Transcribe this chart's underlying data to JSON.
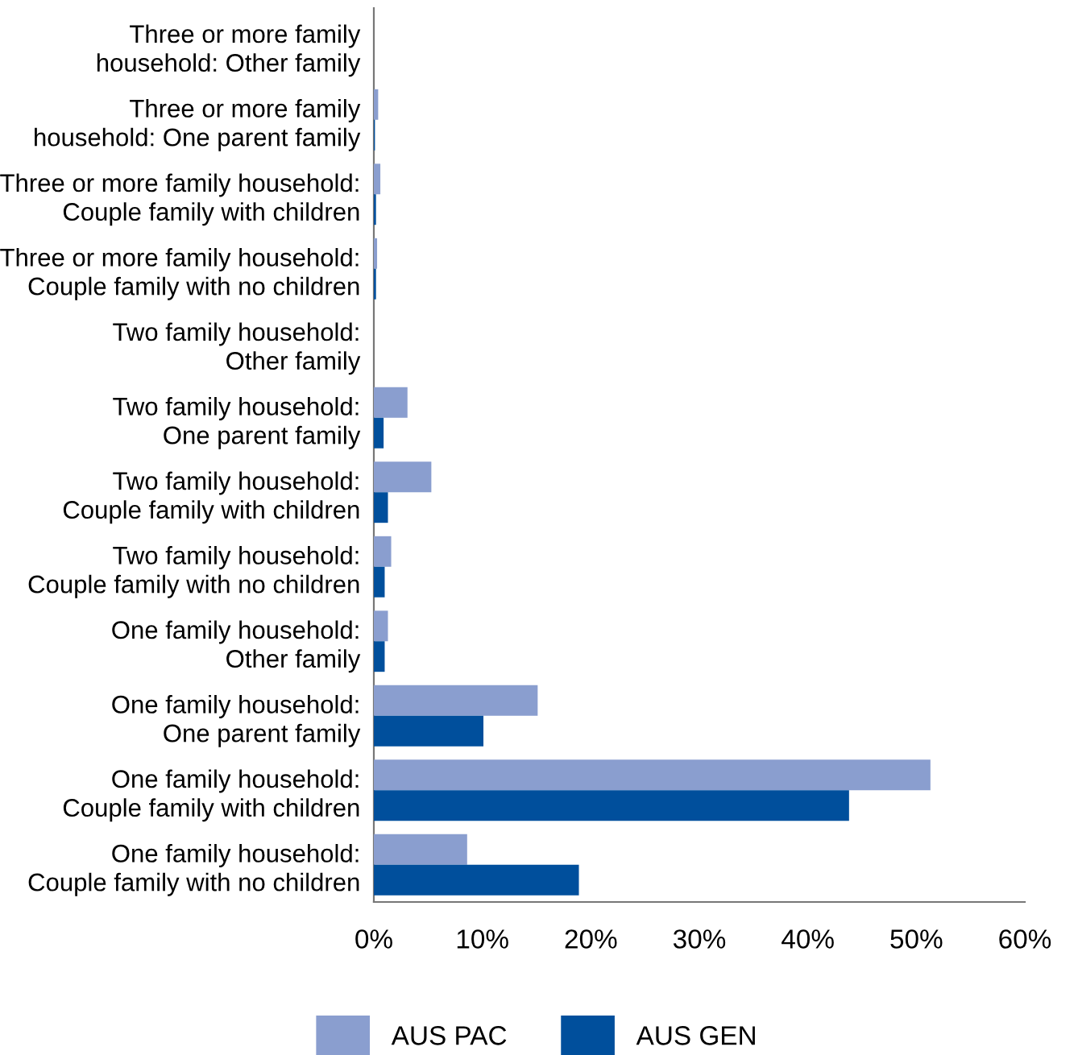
{
  "chart_data": {
    "type": "bar",
    "orientation": "horizontal",
    "categories": [
      "Three or more family\nhousehold: Other family",
      "Three or more family\nhousehold: One parent family",
      "Three or more family household:\nCouple family with children",
      "Three or more family household:\nCouple family with no children",
      "Two family household:\nOther family",
      "Two family household:\nOne parent family",
      "Two family household:\nCouple family with children",
      "Two family household:\nCouple family with no children",
      "One family household:\nOther family",
      "One family household:\nOne parent family",
      "One family household:\nCouple family with children",
      "One family household:\nCouple family with no children"
    ],
    "series": [
      {
        "name": "AUS PAC",
        "color": "#8a9ecf",
        "values": [
          0,
          0.4,
          0.6,
          0.3,
          0,
          3.1,
          5.3,
          1.6,
          1.3,
          15.1,
          51.3,
          8.6
        ]
      },
      {
        "name": "AUS GEN",
        "color": "#004f9c",
        "values": [
          0,
          0.1,
          0.2,
          0.2,
          0,
          0.9,
          1.3,
          1.0,
          1.0,
          10.1,
          43.8,
          18.9
        ]
      }
    ],
    "xlim": [
      0,
      60
    ],
    "xticks": [
      {
        "value": 0,
        "label": "0%"
      },
      {
        "value": 10,
        "label": "10%"
      },
      {
        "value": 20,
        "label": "20%"
      },
      {
        "value": 30,
        "label": "30%"
      },
      {
        "value": 40,
        "label": "40%"
      },
      {
        "value": 50,
        "label": "50%"
      },
      {
        "value": 60,
        "label": "60%"
      }
    ],
    "grid": false,
    "legend": "bottom"
  }
}
